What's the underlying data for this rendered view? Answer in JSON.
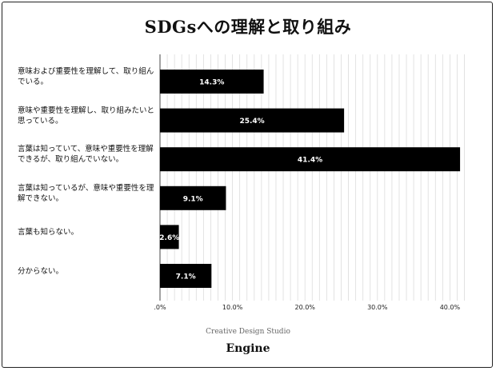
{
  "chart_data": {
    "type": "bar",
    "orientation": "horizontal",
    "title": "SDGsへの理解と取り組み",
    "categories": [
      "意味および重要性を理解して、取り組んでいる。",
      "意味や重要性を理解し、取り組みたいと思っている。",
      "言葉は知っていて、意味や重要性を理解できるが、取り組んでいない。",
      "言葉は知っているが、意味や重要性を理解できない。",
      "言葉も知らない。",
      "分からない。"
    ],
    "values": [
      14.3,
      25.4,
      41.4,
      9.1,
      2.6,
      7.1
    ],
    "data_labels": [
      "14.3%",
      "25.4%",
      "41.4%",
      "9.1%",
      "2.6%",
      "7.1%"
    ],
    "xlim": [
      0,
      42
    ],
    "x_ticks": [
      0,
      10,
      20,
      30,
      40
    ],
    "x_tick_labels": [
      ".0%",
      "10.0%",
      "20.0%",
      "30.0%",
      "40.0%"
    ],
    "grid": true,
    "bar_color": "#000000",
    "label_color": "#ffffff"
  },
  "footer": {
    "studio": "Creative Design Studio",
    "brand": "Engine"
  }
}
